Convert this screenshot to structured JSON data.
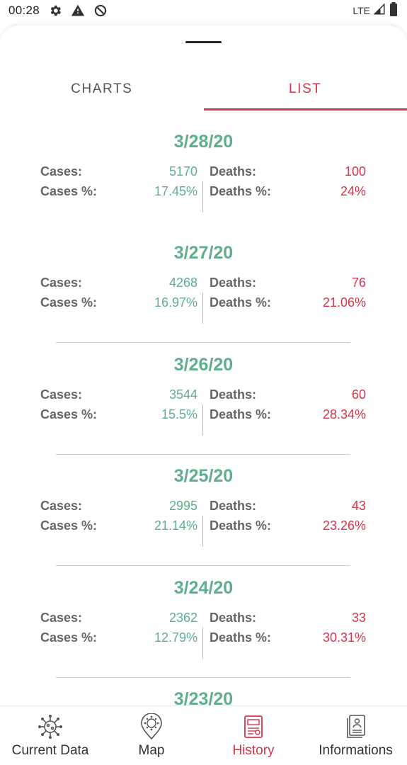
{
  "status_bar": {
    "time": "00:28",
    "network": "LTE"
  },
  "tabs": [
    {
      "label": "CHARTS",
      "active": false
    },
    {
      "label": "LIST",
      "active": true
    }
  ],
  "labels": {
    "cases": "Cases:",
    "cases_pct": "Cases %:",
    "deaths": "Deaths:",
    "deaths_pct": "Deaths %:"
  },
  "entries": [
    {
      "date": "3/28/20",
      "cases": "5170",
      "cases_pct": "17.45%",
      "deaths": "100",
      "deaths_pct": "24%"
    },
    {
      "date": "3/27/20",
      "cases": "4268",
      "cases_pct": "16.97%",
      "deaths": "76",
      "deaths_pct": "21.06%"
    },
    {
      "date": "3/26/20",
      "cases": "3544",
      "cases_pct": "15.5%",
      "deaths": "60",
      "deaths_pct": "28.34%"
    },
    {
      "date": "3/25/20",
      "cases": "2995",
      "cases_pct": "21.14%",
      "deaths": "43",
      "deaths_pct": "23.26%"
    },
    {
      "date": "3/24/20",
      "cases": "2362",
      "cases_pct": "12.79%",
      "deaths": "33",
      "deaths_pct": "30.31%"
    },
    {
      "date": "3/23/20"
    }
  ],
  "bottom_nav": [
    {
      "label": "Current Data",
      "icon": "virus-icon",
      "active": false
    },
    {
      "label": "Map",
      "icon": "map-pin-icon",
      "active": false
    },
    {
      "label": "History",
      "icon": "history-report-icon",
      "active": true
    },
    {
      "label": "Informations",
      "icon": "info-document-icon",
      "active": false
    }
  ],
  "colors": {
    "green": "#5fae8c",
    "red": "#d6344a",
    "label": "#666666"
  }
}
